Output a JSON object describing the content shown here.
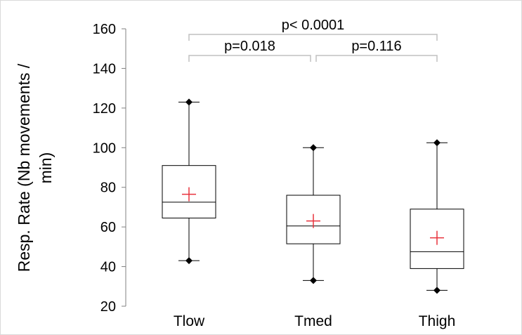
{
  "chart_data": {
    "type": "boxplot",
    "ylabel": "Resp. Rate (Nb movements / min)",
    "ylabel_lines": [
      "Resp. Rate (Nb movements /",
      "min)"
    ],
    "ylim": [
      20,
      160
    ],
    "yticks": [
      20,
      40,
      60,
      80,
      100,
      120,
      140,
      160
    ],
    "grid": false,
    "categories": [
      "Tlow",
      "Tmed",
      "Thigh"
    ],
    "boxes": [
      {
        "category": "Tlow",
        "min": 43,
        "q1": 64.5,
        "median": 72.5,
        "q3": 91,
        "max": 123,
        "mean": 76.5
      },
      {
        "category": "Tmed",
        "min": 33,
        "q1": 51.5,
        "median": 60.5,
        "q3": 76,
        "max": 100,
        "mean": 63
      },
      {
        "category": "Thigh",
        "min": 28,
        "q1": 39,
        "median": 47.5,
        "q3": 69,
        "max": 102.5,
        "mean": 54.5
      }
    ],
    "annotations": [
      {
        "from": 0,
        "to": 2,
        "text": "p< 0.0001",
        "level": 2
      },
      {
        "from": 0,
        "to": 1,
        "text": "p=0.018",
        "level": 1
      },
      {
        "from": 1,
        "to": 2,
        "text": "p=0.116",
        "level": 1
      }
    ],
    "colors": {
      "box": "#000000",
      "whisker_cap": "#000000",
      "mean_marker": "#e8323c",
      "bracket": "#c0c0c0",
      "axis": "#808080"
    }
  }
}
